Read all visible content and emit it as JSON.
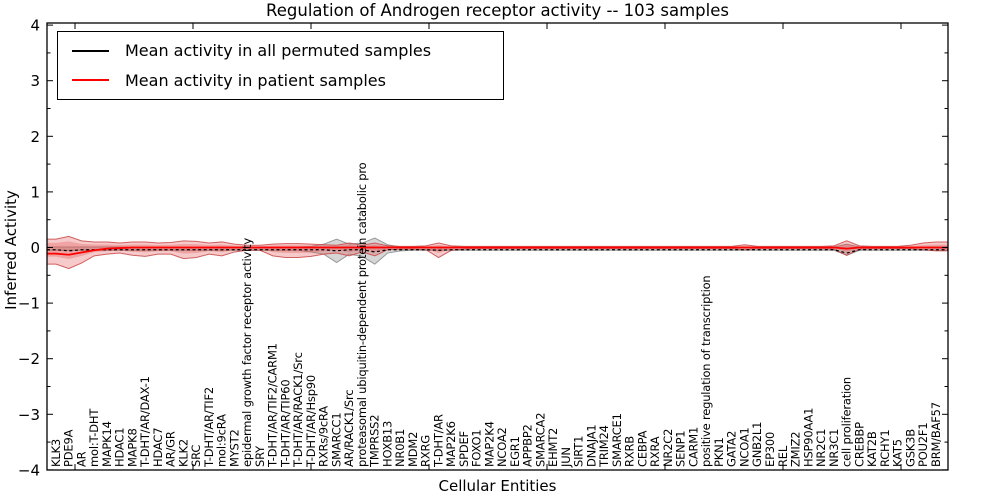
{
  "title": "Regulation of Androgen receptor activity -- 103 samples",
  "axes": {
    "x_label": "Cellular Entities",
    "y_label": "Inferred Activity"
  },
  "legend": {
    "items": [
      {
        "label": "Mean activity in all permuted samples",
        "color": "#000000"
      },
      {
        "label": "Mean activity in patient samples",
        "color": "#ff0000"
      }
    ]
  },
  "colors": {
    "patient_line": "#ff0000",
    "permuted_line": "#000000",
    "patient_band_fill": "#e05050",
    "patient_band_edge": "#c84848",
    "permuted_band_fill": "#999999",
    "permuted_band_edge": "#8a8a8a"
  },
  "chart_data": {
    "type": "line",
    "title": "Regulation of Androgen receptor activity -- 103 samples",
    "xlabel": "Cellular Entities",
    "ylabel": "Inferred Activity",
    "ylim": [
      -4,
      4
    ],
    "grid": false,
    "legend_position": "upper left",
    "y_ticks": {
      "values": [
        -4,
        -3,
        -2,
        -1,
        0,
        1,
        2,
        3,
        4
      ],
      "labels": [
        "−4",
        "−3",
        "−2",
        "−1",
        "0",
        "1",
        "2",
        "3",
        "4"
      ]
    },
    "categories": [
      "KLK3",
      "PDE9A",
      "AR",
      "mol:T-DHT",
      "MAPK14",
      "HDAC1",
      "MAPK8",
      "T-DHT/AR/DAX-1",
      "HDAC7",
      "AR/GR",
      "KLK2",
      "SRC",
      "T-DHT/AR/TIF2",
      "mol:9cRA",
      "MYST2",
      "epidermal growth factor receptor activity",
      "SRY",
      "T-DHT/AR/TIF2/CARM1",
      "T-DHT/AR/TIP60",
      "T-DHT/AR/RACK1/Src",
      "T-DHT/AR/Hsp90",
      "RXRs/9cRA",
      "SMARCC1",
      "AR/RACK1/Src",
      "proteasomal ubiquitin-dependent protein catabolic pro",
      "TMPRSS2",
      "HOXB13",
      "NR0B1",
      "MDM2",
      "RXRG",
      "T-DHT/AR",
      "MAP2K6",
      "SPDEF",
      "FOXO1",
      "MAP2K4",
      "NCOA2",
      "EGR1",
      "APPBP2",
      "SMARCA2",
      "EHMT2",
      "JUN",
      "SIRT1",
      "DNAJA1",
      "TRIM24",
      "SMARCE1",
      "RXRB",
      "CEBPA",
      "RXRA",
      "NR2C2",
      "SENP1",
      "CARM1",
      "positive regulation of transcription",
      "PKN1",
      "GATA2",
      "NCOA1",
      "GNB2L1",
      "EP300",
      "REL",
      "ZMIZ2",
      "HSP90AA1",
      "NR2C1",
      "NR3C1",
      "cell proliferation",
      "CREBBP",
      "KAT2B",
      "RCHY1",
      "KAT5",
      "GSK3B",
      "POU2F1",
      "BRM/BAF57"
    ],
    "series": [
      {
        "name": "Mean activity in all permuted samples",
        "color": "#000000",
        "style": "dashed",
        "values": [
          -0.04,
          -0.06,
          -0.04,
          -0.04,
          -0.04,
          -0.04,
          -0.04,
          -0.04,
          -0.04,
          -0.04,
          -0.04,
          -0.04,
          -0.04,
          -0.04,
          -0.04,
          -0.04,
          -0.04,
          -0.04,
          -0.04,
          -0.04,
          -0.04,
          -0.04,
          -0.06,
          -0.04,
          -0.04,
          -0.08,
          -0.04,
          -0.04,
          -0.04,
          -0.04,
          -0.05,
          -0.04,
          -0.04,
          -0.04,
          -0.04,
          -0.04,
          -0.04,
          -0.04,
          -0.04,
          -0.04,
          -0.04,
          -0.04,
          -0.04,
          -0.04,
          -0.04,
          -0.04,
          -0.04,
          -0.04,
          -0.04,
          -0.04,
          -0.04,
          -0.04,
          -0.04,
          -0.04,
          -0.04,
          -0.04,
          -0.04,
          -0.04,
          -0.04,
          -0.04,
          -0.04,
          -0.04,
          -0.1,
          -0.04,
          -0.04,
          -0.04,
          -0.04,
          -0.04,
          -0.04,
          -0.04
        ]
      },
      {
        "name": "Mean activity in patient samples",
        "color": "#ff0000",
        "style": "solid",
        "values": [
          -0.11,
          -0.13,
          -0.09,
          -0.05,
          -0.02,
          -0.01,
          0,
          0,
          0,
          0,
          0,
          0,
          0,
          0,
          0,
          0,
          0,
          0,
          0,
          0,
          0,
          0,
          0,
          0,
          0,
          0,
          0,
          0,
          0,
          0,
          0,
          0,
          0,
          0,
          0,
          0,
          0,
          0,
          0,
          0,
          0,
          0,
          0,
          0,
          0,
          0,
          0,
          0,
          0,
          0,
          0,
          0,
          0,
          0,
          0,
          0,
          0,
          0,
          0,
          0,
          0,
          0,
          -0.02,
          0,
          0,
          0,
          0,
          0,
          0,
          0
        ]
      }
    ],
    "bands": [
      {
        "name": "permuted-std-band",
        "upper": [
          0.01,
          0.01,
          0.01,
          0.01,
          0.01,
          0.01,
          0.01,
          0.01,
          0.01,
          0.01,
          0.01,
          0.01,
          0.01,
          0.01,
          0.01,
          0.01,
          0.01,
          0.01,
          0.01,
          0.01,
          0.02,
          0.06,
          0.15,
          0.06,
          0.08,
          0.17,
          0.05,
          0.01,
          0.01,
          0.01,
          0.01,
          0.01,
          0.01,
          0.01,
          0.01,
          0.01,
          0.01,
          0.01,
          0.01,
          0.01,
          0.01,
          0.01,
          0.01,
          0.01,
          0.01,
          0.01,
          0.01,
          0.01,
          0.01,
          0.01,
          0.01,
          0.01,
          0.01,
          0.01,
          0.01,
          0.01,
          0.01,
          0.01,
          0.01,
          0.01,
          0.01,
          0.01,
          0.06,
          0.01,
          0.01,
          0.01,
          0.01,
          0.01,
          0.01,
          0.01
        ],
        "lower": [
          -0.05,
          -0.05,
          -0.05,
          -0.05,
          -0.05,
          -0.05,
          -0.05,
          -0.05,
          -0.05,
          -0.05,
          -0.05,
          -0.05,
          -0.05,
          -0.05,
          -0.05,
          -0.05,
          -0.05,
          -0.05,
          -0.05,
          -0.05,
          -0.08,
          -0.12,
          -0.27,
          -0.12,
          -0.16,
          -0.3,
          -0.1,
          -0.06,
          -0.05,
          -0.05,
          -0.05,
          -0.05,
          -0.05,
          -0.05,
          -0.05,
          -0.05,
          -0.05,
          -0.05,
          -0.05,
          -0.05,
          -0.05,
          -0.05,
          -0.05,
          -0.05,
          -0.05,
          -0.05,
          -0.05,
          -0.05,
          -0.05,
          -0.05,
          -0.05,
          -0.05,
          -0.05,
          -0.05,
          -0.05,
          -0.05,
          -0.05,
          -0.05,
          -0.05,
          -0.05,
          -0.05,
          -0.05,
          -0.14,
          -0.05,
          -0.05,
          -0.05,
          -0.05,
          -0.05,
          -0.05,
          -0.05
        ]
      },
      {
        "name": "patient-std-band",
        "upper": [
          0.15,
          0.2,
          0.12,
          0.1,
          0.1,
          0.08,
          0.1,
          0.1,
          0.08,
          0.09,
          0.12,
          0.11,
          0.08,
          0.1,
          0.06,
          0.04,
          0.04,
          0.06,
          0.07,
          0.07,
          0.06,
          0.05,
          0.04,
          0.08,
          0.04,
          0.08,
          0.03,
          0.02,
          0.02,
          0.03,
          0.08,
          0.03,
          0.02,
          0.02,
          0.02,
          0.02,
          0.02,
          0.02,
          0.02,
          0.02,
          0.02,
          0.02,
          0.02,
          0.02,
          0.02,
          0.02,
          0.02,
          0.02,
          0.02,
          0.02,
          0.02,
          0.02,
          0.02,
          0.02,
          0.05,
          0.02,
          0.02,
          0.02,
          0.02,
          0.02,
          0.02,
          0.03,
          0.12,
          0.03,
          0.02,
          0.02,
          0.02,
          0.04,
          0.08,
          0.1
        ],
        "lower": [
          -0.3,
          -0.38,
          -0.28,
          -0.15,
          -0.12,
          -0.1,
          -0.14,
          -0.16,
          -0.12,
          -0.12,
          -0.2,
          -0.18,
          -0.12,
          -0.15,
          -0.08,
          -0.05,
          -0.05,
          -0.15,
          -0.18,
          -0.18,
          -0.16,
          -0.12,
          -0.1,
          -0.15,
          -0.08,
          -0.15,
          -0.04,
          -0.03,
          -0.03,
          -0.04,
          -0.18,
          -0.05,
          -0.03,
          -0.02,
          -0.02,
          -0.02,
          -0.02,
          -0.02,
          -0.02,
          -0.02,
          -0.02,
          -0.02,
          -0.02,
          -0.02,
          -0.02,
          -0.02,
          -0.02,
          -0.02,
          -0.02,
          -0.02,
          -0.02,
          -0.02,
          -0.02,
          -0.02,
          -0.04,
          -0.02,
          -0.02,
          -0.02,
          -0.02,
          -0.02,
          -0.02,
          -0.03,
          -0.14,
          -0.03,
          -0.02,
          -0.02,
          -0.02,
          -0.02,
          -0.04,
          -0.06
        ]
      }
    ]
  }
}
